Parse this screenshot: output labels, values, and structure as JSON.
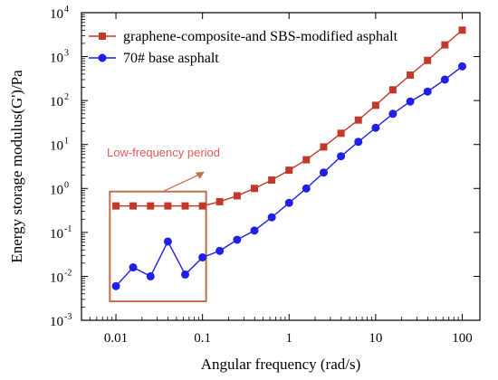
{
  "chart_data": {
    "type": "line",
    "xlabel": "Angular frequency (rad/s)",
    "ylabel": "Energy storage modulus(G')/Pa",
    "x_scale": "log",
    "y_scale": "log",
    "xlim": [
      0.004,
      160
    ],
    "ylim": [
      0.001,
      10000
    ],
    "x_ticks": [
      {
        "value": 0.01,
        "label": "0.01"
      },
      {
        "value": 0.1,
        "label": "0.1"
      },
      {
        "value": 1,
        "label": "1"
      },
      {
        "value": 10,
        "label": "10"
      },
      {
        "value": 100,
        "label": "100"
      }
    ],
    "y_ticks": [
      {
        "value": 0.001,
        "base": "10",
        "exp": "-3"
      },
      {
        "value": 0.01,
        "base": "10",
        "exp": "-2"
      },
      {
        "value": 0.1,
        "base": "10",
        "exp": "-1"
      },
      {
        "value": 1,
        "base": "10",
        "exp": "0"
      },
      {
        "value": 10,
        "base": "10",
        "exp": "1"
      },
      {
        "value": 100,
        "base": "10",
        "exp": "2"
      },
      {
        "value": 1000,
        "base": "10",
        "exp": "3"
      },
      {
        "value": 10000,
        "base": "10",
        "exp": "4"
      }
    ],
    "grid": false,
    "legend_position": "top-left",
    "x": [
      0.01,
      0.0158,
      0.0251,
      0.0398,
      0.0631,
      0.1,
      0.158,
      0.251,
      0.398,
      0.631,
      1,
      1.58,
      2.51,
      3.98,
      6.31,
      10,
      15.8,
      25.1,
      39.8,
      63.1,
      100
    ],
    "series": [
      {
        "name": "graphene-composite-and SBS-modified asphalt",
        "color": "#c0392b",
        "marker": "square",
        "values": [
          0.4,
          0.4,
          0.4,
          0.4,
          0.4,
          0.4,
          0.5,
          0.68,
          1.0,
          1.55,
          2.6,
          4.5,
          8.8,
          18,
          36,
          78,
          175,
          380,
          820,
          1850,
          4000
        ]
      },
      {
        "name": "70# base asphalt",
        "color": "#1f1fe6",
        "marker": "circle",
        "values": [
          0.006,
          0.016,
          0.01,
          0.062,
          0.011,
          0.027,
          0.038,
          0.068,
          0.11,
          0.22,
          0.47,
          1.0,
          2.3,
          5.4,
          11.5,
          24,
          50,
          95,
          160,
          300,
          600
        ]
      }
    ],
    "annotation": {
      "text": "Low-frequency period",
      "color": "#e05a5a",
      "box_color": "#c0704a",
      "x_range": [
        0.0085,
        0.11
      ],
      "y_range": [
        0.0027,
        0.85
      ]
    }
  }
}
